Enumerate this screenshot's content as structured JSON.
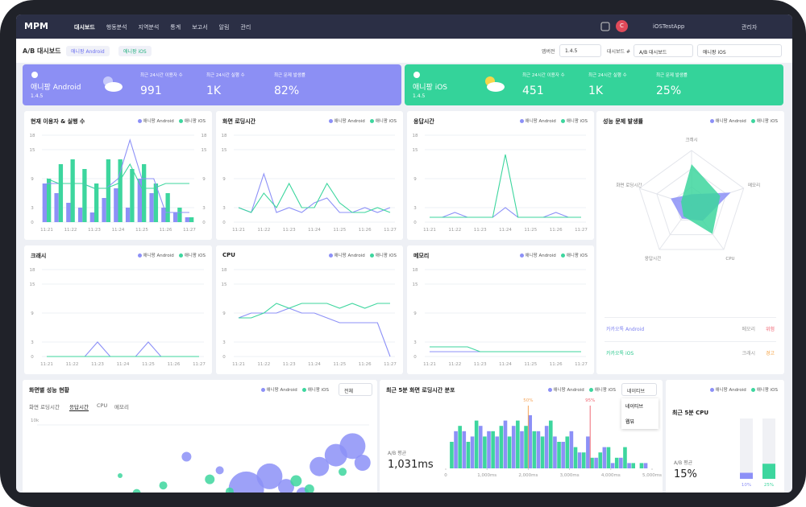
{
  "nav": {
    "logo": "MPM",
    "menu": [
      "대시보드",
      "행동분석",
      "지역분석",
      "통계",
      "보고서",
      "알림",
      "관리"
    ],
    "avatar": "C",
    "app": "iOSTestApp",
    "user": "관리자"
  },
  "header": {
    "title": "A/B 대시보드",
    "tabs": [
      "애니팡 Android",
      "애니팡 iOS"
    ],
    "filters": [
      {
        "label": "앱버전",
        "value": "1.4.5"
      },
      {
        "label": "대시보드 #",
        "value": "A/B 대시보드"
      }
    ],
    "app_select": "애니팡 iOS"
  },
  "cards": [
    {
      "name": "애니팡 Android",
      "version": "1.4.5",
      "stats": [
        {
          "label": "최근 24시간 이용자 수",
          "value": "991"
        },
        {
          "label": "최근 24시간 실행 수",
          "value": "1K"
        },
        {
          "label": "최근 문제 발생률",
          "value": "82%"
        }
      ]
    },
    {
      "name": "애니팡 iOS",
      "version": "1.4.5",
      "stats": [
        {
          "label": "최근 24시간 이용자 수",
          "value": "451"
        },
        {
          "label": "최근 24시간 실행 수",
          "value": "1K"
        },
        {
          "label": "최근 문제 발생률",
          "value": "25%"
        }
      ]
    }
  ],
  "chart_data": [
    {
      "type": "line",
      "title": "현재 이용자 & 실행 수",
      "categories": [
        "11:21",
        null,
        "11:22",
        null,
        "11:23",
        null,
        "11:24",
        null,
        "11:25",
        null,
        "11:26",
        null,
        "11:27"
      ],
      "ylim": [
        0,
        18
      ],
      "yticks": [
        0,
        3,
        9,
        15,
        18
      ],
      "y2lim": [
        0,
        18
      ],
      "y2ticks": [
        0,
        3,
        9,
        15,
        18
      ],
      "series": [
        {
          "name": "애니팡 Android",
          "color": "#8c90f7",
          "mark": "bar",
          "values": [
            8,
            6,
            4,
            3,
            2,
            5,
            7,
            3,
            9,
            6,
            3,
            2,
            1
          ]
        },
        {
          "name": "애니팡 iOS",
          "color": "#3dd69e",
          "mark": "bar",
          "values": [
            9,
            12,
            13,
            11,
            8,
            13,
            13,
            11,
            12,
            8,
            6,
            3,
            1
          ]
        },
        {
          "name": "애니팡 Android",
          "color": "#8c90f7",
          "mark": "line",
          "axis": "y2",
          "values": [
            8,
            8,
            8,
            8,
            7,
            7,
            9,
            17,
            9,
            9,
            2,
            2,
            2
          ]
        },
        {
          "name": "애니팡 iOS",
          "color": "#3dd69e",
          "mark": "line",
          "axis": "y2",
          "values": [
            9,
            8,
            8,
            8,
            7,
            7,
            8,
            12,
            7,
            7,
            8,
            8,
            8
          ]
        }
      ]
    },
    {
      "type": "line",
      "title": "화면 로딩시간",
      "categories": [
        "11:21",
        null,
        "11:22",
        null,
        "11:23",
        null,
        "11:24",
        null,
        "11:25",
        null,
        "11:26",
        null,
        "11:27"
      ],
      "ylim": [
        0,
        18
      ],
      "yticks": [
        0,
        3,
        9,
        15,
        18
      ],
      "series": [
        {
          "name": "애니팡 Android",
          "color": "#8c90f7",
          "mark": "line",
          "values": [
            3,
            2,
            10,
            2,
            3,
            2,
            4,
            5,
            2,
            2,
            3,
            2,
            3
          ]
        },
        {
          "name": "애니팡 iOS",
          "color": "#3dd69e",
          "mark": "line",
          "values": [
            3,
            2,
            6,
            3,
            8,
            3,
            3,
            8,
            4,
            2,
            2,
            3,
            2
          ]
        }
      ]
    },
    {
      "type": "line",
      "title": "응답시간",
      "categories": [
        "11:21",
        null,
        "11:22",
        null,
        "11:23",
        null,
        "11:24",
        null,
        "11:25",
        null,
        "11:26",
        null,
        "11:27"
      ],
      "ylim": [
        0,
        18
      ],
      "yticks": [
        0,
        3,
        9,
        15,
        18
      ],
      "series": [
        {
          "name": "애니팡 Android",
          "color": "#8c90f7",
          "mark": "line",
          "values": [
            1,
            1,
            2,
            1,
            1,
            1,
            3,
            1,
            1,
            1,
            2,
            1,
            1
          ]
        },
        {
          "name": "애니팡 iOS",
          "color": "#3dd69e",
          "mark": "line",
          "values": [
            1,
            1,
            1,
            1,
            1,
            1,
            14,
            1,
            1,
            1,
            1,
            1,
            1
          ]
        }
      ]
    },
    {
      "type": "line",
      "title": "크래시",
      "categories": [
        "11:21",
        null,
        "11:22",
        null,
        "11:23",
        null,
        "11:24",
        null,
        "11:25",
        null,
        "11:26",
        null,
        "11:27"
      ],
      "ylim": [
        0,
        18
      ],
      "yticks": [
        0,
        3,
        9,
        15,
        18
      ],
      "series": [
        {
          "name": "애니팡 Android",
          "color": "#8c90f7",
          "mark": "line",
          "values": [
            0,
            0,
            0,
            0,
            3,
            0,
            0,
            0,
            3,
            0,
            0,
            0,
            0
          ]
        },
        {
          "name": "애니팡 iOS",
          "color": "#3dd69e",
          "mark": "line",
          "values": [
            0,
            0,
            0,
            0,
            0,
            0,
            0,
            0,
            0,
            0,
            0,
            0,
            0
          ]
        }
      ]
    },
    {
      "type": "line",
      "title": "CPU",
      "categories": [
        "11:21",
        null,
        "11:22",
        null,
        "11:23",
        null,
        "11:24",
        null,
        "11:25",
        null,
        "11:26",
        null,
        "11:27"
      ],
      "ylim": [
        0,
        18
      ],
      "yticks": [
        0,
        3,
        9,
        15,
        18
      ],
      "series": [
        {
          "name": "애니팡 Android",
          "color": "#8c90f7",
          "mark": "line",
          "values": [
            8,
            9,
            9,
            9,
            10,
            9,
            9,
            8,
            7,
            7,
            7,
            7,
            0
          ]
        },
        {
          "name": "애니팡 iOS",
          "color": "#3dd69e",
          "mark": "line",
          "values": [
            8,
            8,
            9,
            11,
            10,
            11,
            11,
            11,
            10,
            11,
            10,
            11,
            11
          ]
        }
      ]
    },
    {
      "type": "line",
      "title": "메모리",
      "categories": [
        "11:21",
        null,
        "11:22",
        null,
        "11:23",
        null,
        "11:24",
        null,
        "11:25",
        null,
        "11:26",
        null,
        "11:27"
      ],
      "ylim": [
        0,
        18
      ],
      "yticks": [
        0,
        3,
        9,
        15,
        18
      ],
      "series": [
        {
          "name": "애니팡 Android",
          "color": "#8c90f7",
          "mark": "line",
          "values": [
            1,
            1,
            1,
            1,
            1,
            1,
            1,
            1,
            1,
            1,
            1,
            1,
            1
          ]
        },
        {
          "name": "애니팡 iOS",
          "color": "#3dd69e",
          "mark": "line",
          "values": [
            2,
            2,
            2,
            2,
            1,
            1,
            1,
            1,
            1,
            1,
            1,
            1,
            1
          ]
        }
      ]
    },
    {
      "type": "radar",
      "title": "성능 문제 발생률",
      "categories": [
        "크래시",
        "메모리",
        "CPU",
        "응답시간",
        "화면 로딩시간"
      ],
      "series": [
        {
          "name": "애니팡 Android",
          "color": "#8c90f7",
          "values": [
            0.2,
            0.75,
            0.35,
            0.3,
            0.4
          ]
        },
        {
          "name": "애니팡 iOS",
          "color": "#3dd69e",
          "values": [
            0.75,
            0.55,
            0.65,
            0.25,
            0.2
          ]
        }
      ],
      "issues": [
        {
          "app": "카카오톡 Android",
          "metric": "메모리",
          "level": "위험"
        },
        {
          "app": "카카오톡 iOS",
          "metric": "크래시",
          "level": "경고"
        }
      ]
    },
    {
      "type": "bubble",
      "title": "화면별 성능 현황",
      "filter": "전체",
      "tabs": [
        "화면 로딩시간",
        "응답시간",
        "CPU",
        "메모리"
      ],
      "xlim": [
        0,
        100
      ],
      "ylim": [
        0,
        10000
      ],
      "yticks": [
        {
          "value": 10000,
          "label": "10k"
        }
      ],
      "series": [
        {
          "name": "애니팡 Android",
          "color": "#8c90f7",
          "x": [
            45,
            55,
            63,
            70,
            75,
            80,
            85,
            90,
            95,
            98
          ],
          "values": [
            5800,
            4000,
            1500,
            3200,
            1800,
            900,
            4500,
            6000,
            7200,
            5000
          ],
          "sizes": [
            6,
            5,
            22,
            16,
            10,
            8,
            12,
            14,
            16,
            10
          ]
        },
        {
          "name": "애니팡 iOS",
          "color": "#3dd69e",
          "x": [
            25,
            30,
            38,
            45,
            52,
            58,
            68,
            78,
            82,
            88,
            92
          ],
          "values": [
            3300,
            1000,
            2000,
            500,
            2800,
            1200,
            500,
            2600,
            1500,
            300,
            3800
          ],
          "sizes": [
            3,
            5,
            5,
            4,
            6,
            5,
            4,
            7,
            6,
            5,
            5
          ]
        }
      ]
    },
    {
      "type": "histogram",
      "title": "최근 5분 화면 로딩시간 분포",
      "dropdown": "네이티브",
      "options": [
        "네이티브",
        "웹뷰"
      ],
      "avg_label": "A/B 평균",
      "avg": "1,031ms",
      "xlim": [
        0,
        5000
      ],
      "xticks": [
        0,
        {
          "value": 1000,
          "label": "1,000ms"
        },
        {
          "value": 2000,
          "label": "2,000ms"
        },
        {
          "value": 3000,
          "label": "3,000ms"
        },
        {
          "value": 4000,
          "label": "4,000ms"
        },
        {
          "value": 5000,
          "label": "5,000ms"
        }
      ],
      "bins": [
        0,
        200,
        400,
        600,
        800,
        1000,
        1200,
        1400,
        1600,
        1800,
        2000,
        2200,
        2400,
        2600,
        2800,
        3000,
        3200,
        3400,
        3600,
        3800,
        4000,
        4200,
        4400,
        4600,
        4800,
        5000
      ],
      "series": [
        {
          "name": "애니팡 Android",
          "color": "#8c90f7",
          "values": [
            0,
            7,
            7,
            6,
            8,
            7,
            6,
            9,
            8,
            7,
            10,
            7,
            8,
            6,
            5,
            7,
            3,
            6,
            2,
            4,
            1,
            2,
            1,
            0,
            1
          ]
        },
        {
          "name": "애니팡 iOS",
          "color": "#3dd69e",
          "values": [
            5,
            8,
            5,
            9,
            6,
            7,
            8,
            6,
            9,
            8,
            7,
            6,
            9,
            5,
            6,
            4,
            3,
            2,
            3,
            4,
            2,
            4,
            1,
            1,
            0
          ]
        }
      ],
      "markers": [
        {
          "label": "50%",
          "value": 2000,
          "color": "#f5a65b"
        },
        {
          "label": "95%",
          "value": 3500,
          "color": "#f06a75"
        }
      ]
    },
    {
      "type": "gauge",
      "title": "최근 5분 CPU",
      "avg_label": "A/B 평균",
      "avg": "15%",
      "ylim": [
        0,
        100
      ],
      "series": [
        {
          "name": "애니팡 Android",
          "color": "#8c90f7",
          "values": [
            10
          ],
          "value_labels": [
            "10%"
          ]
        },
        {
          "name": "애니팡 iOS",
          "color": "#3dd69e",
          "values": [
            25
          ],
          "value_labels": [
            "25%"
          ]
        }
      ]
    }
  ]
}
